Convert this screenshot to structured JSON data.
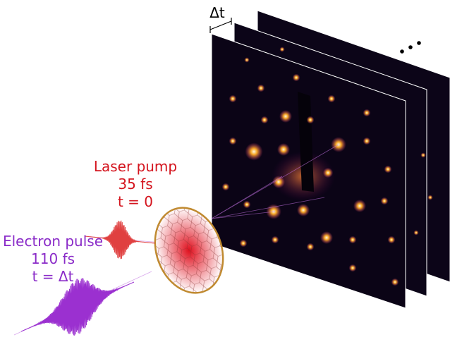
{
  "labels": {
    "delta_t": "Δt",
    "laser": {
      "name": "Laser pump",
      "duration": "35 fs",
      "time": "t = 0"
    },
    "electron": {
      "name": "Electron pulse",
      "duration": "110 fs",
      "time": "t = Δt"
    }
  }
}
